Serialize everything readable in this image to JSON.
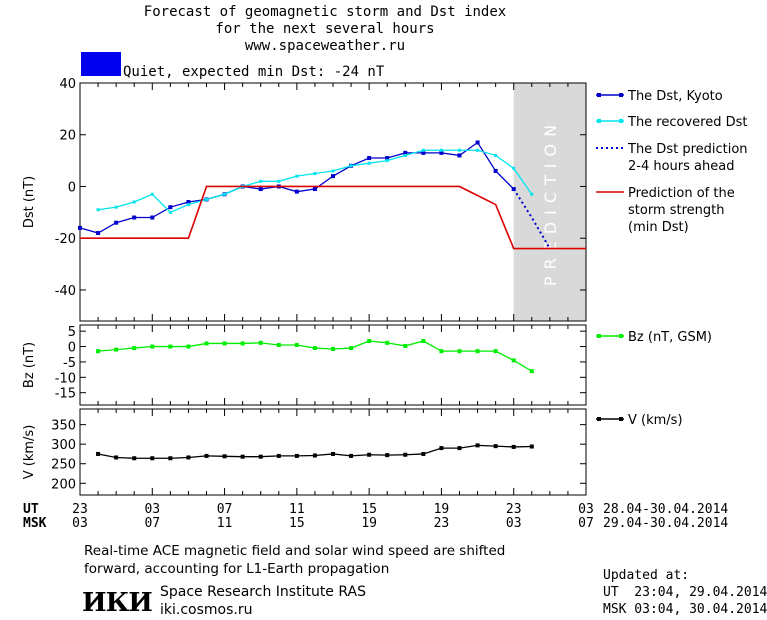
{
  "header": {
    "line1": "Forecast of geomagnetic storm and Dst index",
    "line2": "for the next several hours",
    "line3": "www.spaceweather.ru"
  },
  "status": {
    "text": "Quiet, expected min Dst: -24 nT",
    "color": "#0000ee"
  },
  "colors": {
    "dst": "#0000cc",
    "recovered": "#00e5ee",
    "prediction": "#0000cc",
    "strength": "#dd0000",
    "bz": "#00ee00",
    "v": "#000000",
    "shade": "#d9d9d9"
  },
  "chart_data": [
    {
      "type": "line",
      "panel": "dst",
      "ylabel": "Dst (nT)",
      "ylim": [
        -52,
        40
      ],
      "yticks": [
        40,
        20,
        0,
        -20,
        -40
      ],
      "xlim": [
        0,
        28
      ],
      "prediction_label": "PREDICTION",
      "prediction_zone": [
        24,
        28
      ],
      "series": [
        {
          "name": "The Dst, Kyoto",
          "x": [
            0,
            1,
            2,
            3,
            4,
            5,
            6,
            7,
            8,
            9,
            10,
            11,
            12,
            13,
            14,
            15,
            16,
            17,
            18,
            19,
            20,
            21,
            22,
            23,
            24
          ],
          "y": [
            -16,
            -18,
            -14,
            -12,
            -12,
            -8,
            -6,
            -5,
            -3,
            0,
            -1,
            0,
            -2,
            -1,
            4,
            8,
            11,
            11,
            13,
            13,
            13,
            12,
            17,
            6,
            -1
          ]
        },
        {
          "name": "The recovered Dst",
          "x": [
            1,
            2,
            3,
            4,
            5,
            6,
            7,
            8,
            9,
            10,
            11,
            12,
            13,
            14,
            15,
            16,
            17,
            18,
            19,
            20,
            21,
            22,
            23,
            24,
            25
          ],
          "y": [
            -9,
            -8,
            -6,
            -3,
            -10,
            -7,
            -5,
            -3,
            0,
            2,
            2,
            4,
            5,
            6,
            8,
            9,
            10,
            12,
            14,
            14,
            14,
            14,
            12,
            7,
            -3
          ]
        },
        {
          "name": "The Dst prediction\n2-4 hours ahead",
          "x": [
            24,
            25,
            26
          ],
          "y": [
            -1,
            -12,
            -24
          ]
        },
        {
          "name": "Prediction of the\nstorm strength\n(min Dst)",
          "x": [
            0,
            6,
            7,
            13,
            19,
            20,
            21,
            23,
            24,
            28
          ],
          "y": [
            -20,
            -20,
            0,
            0,
            0,
            0,
            0,
            -7,
            -24,
            -24
          ]
        }
      ]
    },
    {
      "type": "line",
      "panel": "bz",
      "ylabel": "Bz (nT)",
      "ylim": [
        -19,
        7
      ],
      "yticks": [
        5,
        0,
        -5,
        -10,
        -15
      ],
      "xlim": [
        0,
        28
      ],
      "series": [
        {
          "name": "Bz (nT, GSM)",
          "x": [
            1,
            2,
            3,
            4,
            5,
            6,
            7,
            8,
            9,
            10,
            11,
            12,
            13,
            14,
            15,
            16,
            17,
            18,
            19,
            20,
            21,
            22,
            23,
            24,
            25
          ],
          "y": [
            -1.5,
            -1,
            -0.5,
            0,
            0,
            0,
            1,
            1,
            1,
            1.2,
            0.5,
            0.5,
            -0.5,
            -0.8,
            -0.5,
            1.8,
            1.2,
            0.2,
            1.8,
            -1.5,
            -1.5,
            -1.5,
            -1.5,
            -4.5,
            -8
          ]
        }
      ]
    },
    {
      "type": "line",
      "panel": "v",
      "ylabel": "V (km/s)",
      "ylim": [
        170,
        390
      ],
      "yticks": [
        350,
        300,
        250,
        200
      ],
      "xlim": [
        0,
        28
      ],
      "series": [
        {
          "name": "V (km/s)",
          "x": [
            1,
            2,
            3,
            4,
            5,
            6,
            7,
            8,
            9,
            10,
            11,
            12,
            13,
            14,
            15,
            16,
            17,
            18,
            19,
            20,
            21,
            22,
            23,
            24,
            25
          ],
          "y": [
            275,
            266,
            264,
            264,
            264,
            266,
            270,
            269,
            268,
            268,
            270,
            270,
            271,
            275,
            270,
            273,
            272,
            273,
            275,
            290,
            290,
            297,
            295,
            293,
            294
          ]
        }
      ]
    }
  ],
  "xaxis": {
    "ut_label": "UT",
    "msk_label": "MSK",
    "ut_ticks": [
      "23",
      "03",
      "07",
      "11",
      "15",
      "19",
      "23",
      "03"
    ],
    "msk_ticks": [
      "03",
      "07",
      "11",
      "15",
      "19",
      "23",
      "03",
      "07"
    ],
    "tick_hours": [
      0,
      4,
      8,
      12,
      16,
      20,
      24,
      28
    ],
    "ut_range": "28.04-30.04.2014",
    "msk_range": "29.04-30.04.2014"
  },
  "notes": {
    "line1": "Real-time ACE magnetic field and solar wind speed are shifted",
    "line2": "forward, accounting for L1-Earth propagation"
  },
  "org": {
    "logo_text": "ИКИ",
    "name": "Space Research Institute RAS",
    "site": "iki.cosmos.ru"
  },
  "updated": {
    "label": "Updated at:",
    "ut": "UT  23:04, 29.04.2014",
    "msk": "MSK 03:04, 30.04.2014"
  }
}
